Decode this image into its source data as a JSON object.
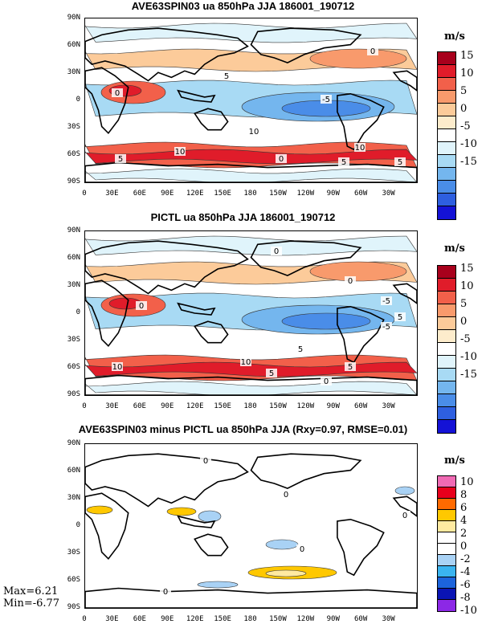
{
  "chart_data": [
    {
      "type": "heatmap",
      "title": "AVE63SPIN03 ua 850hPa JJA 186001_190712",
      "units": "m/s",
      "x_tick_labels": [
        "0",
        "30E",
        "60E",
        "90E",
        "120E",
        "150E",
        "180",
        "150W",
        "120W",
        "90W",
        "60W",
        "30W"
      ],
      "y_tick_labels": [
        "90N",
        "60N",
        "30N",
        "0",
        "30S",
        "60S",
        "90S"
      ],
      "colorbar": {
        "labels": [
          "15",
          "10",
          "5",
          "0",
          "-5",
          "-10",
          "-15"
        ],
        "colors": [
          "#a8001c",
          "#e01c2a",
          "#f2604a",
          "#f89a6c",
          "#fccb9a",
          "#fdeccc",
          "#ffffff",
          "#e0f4fb",
          "#a8daf4",
          "#74b6ee",
          "#4a8de8",
          "#2e5fe0",
          "#1412d6"
        ]
      },
      "contour_labels": [
        "0",
        "5",
        "-5",
        "0",
        "10",
        "10",
        "5",
        "0",
        "5",
        "5",
        "10",
        "-5"
      ]
    },
    {
      "type": "heatmap",
      "title": "PICTL ua 850hPa JJA 186001_190712",
      "units": "m/s",
      "x_tick_labels": [
        "0",
        "30E",
        "60E",
        "90E",
        "120E",
        "150E",
        "180",
        "150W",
        "120W",
        "90W",
        "60W",
        "30W"
      ],
      "y_tick_labels": [
        "90N",
        "60N",
        "30N",
        "0",
        "30S",
        "60S",
        "90S"
      ],
      "colorbar": {
        "labels": [
          "15",
          "10",
          "5",
          "0",
          "-5",
          "-10",
          "-15"
        ],
        "colors": [
          "#a8001c",
          "#e01c2a",
          "#f2604a",
          "#f89a6c",
          "#fccb9a",
          "#fdeccc",
          "#ffffff",
          "#e0f4fb",
          "#a8daf4",
          "#74b6ee",
          "#4a8de8",
          "#2e5fe0",
          "#1412d6"
        ]
      },
      "contour_labels": [
        "0",
        "0",
        "5",
        "-5",
        "0",
        "5",
        "10",
        "10",
        "5",
        "5",
        "0",
        "-5"
      ]
    },
    {
      "type": "heatmap",
      "title": "AVE63SPIN03 minus PICTL ua 850hPa JJA (Rxy=0.97, RMSE=0.01)",
      "units": "m/s",
      "x_tick_labels": [
        "0",
        "30E",
        "60E",
        "90E",
        "120E",
        "150E",
        "180",
        "150W",
        "120W",
        "90W",
        "60W",
        "30W"
      ],
      "y_tick_labels": [
        "90N",
        "60N",
        "30N",
        "0",
        "30S",
        "60S",
        "90S"
      ],
      "colorbar": {
        "labels": [
          "10",
          "8",
          "6",
          "4",
          "2",
          "0",
          "-2",
          "-4",
          "-6",
          "-8",
          "-10"
        ],
        "colors": [
          "#f06ab4",
          "#e8001c",
          "#ff6a00",
          "#ffc800",
          "#ffeaa0",
          "#ffffff",
          "#ffffff",
          "#a9d2f5",
          "#3ab4f0",
          "#1c64dc",
          "#0a14b4",
          "#8c28e6"
        ]
      },
      "max_text": "Max=6.21",
      "min_text": "Min=-6.77",
      "contour_labels": [
        "0",
        "0",
        "0",
        "0",
        "0"
      ]
    }
  ]
}
